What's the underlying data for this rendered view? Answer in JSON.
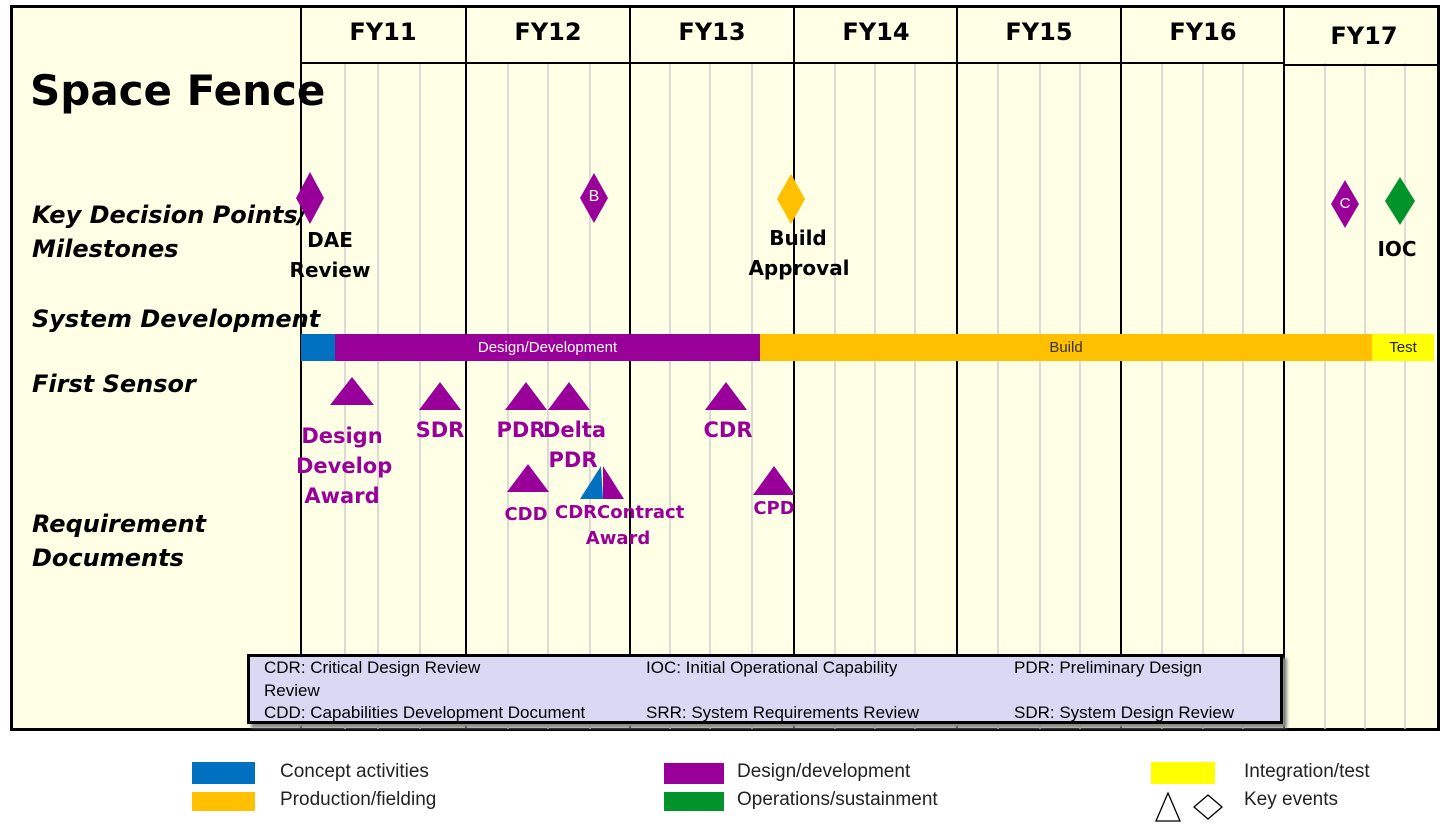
{
  "title": "Space Fence",
  "fiscal_years": [
    "FY11",
    "FY12",
    "FY13",
    "FY14",
    "FY15",
    "FY16",
    "FY17"
  ],
  "row_labels": {
    "milestones_line1": "Key Decision Points/",
    "milestones_line2": "Milestones",
    "system_development": "System Development",
    "first_sensor": "First Sensor",
    "requirements_line1": "Requirement",
    "requirements_line2": "Documents"
  },
  "milestones": {
    "b_letter": "B",
    "c_letter": "C",
    "dae_line1": "DAE",
    "dae_line2": "Review",
    "build_line1": "Build",
    "build_line2": "Approval",
    "ioc": "IOC"
  },
  "system_development_bar": {
    "design_label": "Design/Development",
    "build_label": "Build",
    "test_label": "Test"
  },
  "first_sensor_events": {
    "design_line1": "Design",
    "design_line2": "Develop",
    "design_line3": "Award",
    "sdr": "SDR",
    "pdr": "PDR",
    "delta_line1": "Delta",
    "delta_line2": "PDR",
    "cdr": "CDR"
  },
  "requirement_events": {
    "cdd": "CDD",
    "cdr": "CDR",
    "contract_line1": "Contract",
    "contract_line2": "Award",
    "cpd": "CPD"
  },
  "definitions": {
    "cdr_line1": "CDR: Critical Design Review",
    "cdr_line2": "Review",
    "ioc": "IOC: Initial Operational Capability",
    "pdr": "PDR: Preliminary Design",
    "cdd": "CDD: Capabilities Development Document",
    "srr": "SRR: System Requirements Review",
    "sdr": "SDR: System Design Review"
  },
  "legend": {
    "concept": "Concept activities",
    "production": "Production/fielding",
    "design": "Design/development",
    "operations": "Operations/sustainment",
    "integration": "Integration/test",
    "key_events": "Key events"
  },
  "colors": {
    "concept": "#0070c0",
    "design": "#990099",
    "production": "#ffc000",
    "operations": "#00942b",
    "integration": "#ffff00",
    "background": "#ffffe6",
    "definitions_box": "#d9d9f3"
  }
}
